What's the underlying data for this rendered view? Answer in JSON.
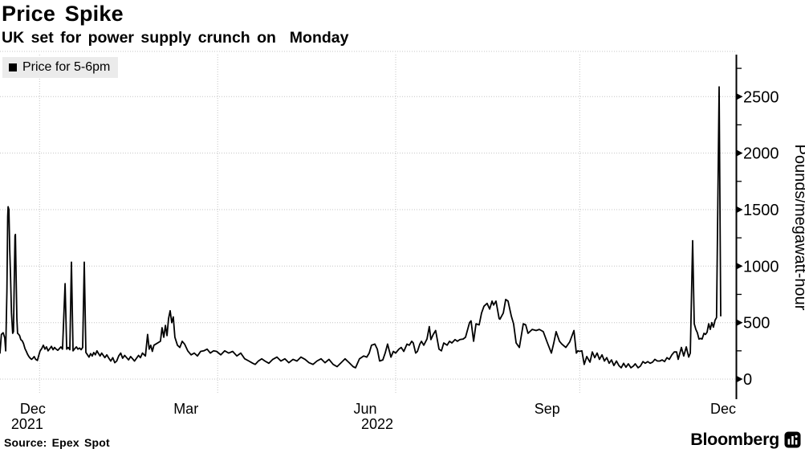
{
  "header": {
    "title": "Price Spike",
    "subtitle": "UK set for power supply crunch on  Monday"
  },
  "legend": {
    "label": "Price for 5-6pm",
    "swatch_color": "#000000",
    "background": "#ebebeb"
  },
  "footer": {
    "source": "Source: Epex Spot",
    "brand": "Bloomberg"
  },
  "colors": {
    "line": "#000000",
    "grid": "#c4c4c4",
    "axis": "#000000",
    "text": "#000000",
    "legend_bg": "#ebebeb"
  },
  "chart_data": {
    "type": "line",
    "title": "Price Spike",
    "subtitle": "UK set for power supply crunch on  Monday",
    "series_name": "Price for 5-6pm",
    "ylabel": "Pounds/megawatt-hour",
    "ylim": [
      0,
      2900
    ],
    "y_ticks": [
      0,
      500,
      1000,
      1500,
      2000,
      2500
    ],
    "y_minor_ticks": [
      250,
      750,
      1250,
      1750,
      2250,
      2750
    ],
    "grid": true,
    "legend_position": "top-left",
    "x_start_date": "2021-12-12",
    "x_span_days": 372,
    "x_gridline_dates": [
      "2022-01-01",
      "2022-04-01",
      "2022-07-01",
      "2022-10-01"
    ],
    "x_gridline_days": [
      20,
      110,
      200,
      293
    ],
    "x_ticks": [
      {
        "label": "Dec",
        "sublabel": "2021",
        "day": 16.6,
        "sublabel_dx": -7
      },
      {
        "label": "Mar",
        "day": 94
      },
      {
        "label": "Jun",
        "sublabel": "2022",
        "day": 184.6,
        "sublabel_dx": 15
      },
      {
        "label": "Sep",
        "day": 276.6
      },
      {
        "label": "Dec",
        "day": 365.5
      }
    ],
    "peak_value": 2586,
    "points": [
      [
        0,
        230
      ],
      [
        0.7,
        395
      ],
      [
        1.6,
        410
      ],
      [
        2.4,
        365
      ],
      [
        2.9,
        250
      ],
      [
        3.5,
        775
      ],
      [
        3.9,
        1440
      ],
      [
        4.1,
        1525
      ],
      [
        4.5,
        1500
      ],
      [
        4.9,
        1150
      ],
      [
        5.3,
        920
      ],
      [
        5.8,
        585
      ],
      [
        6.4,
        405
      ],
      [
        6.8,
        420
      ],
      [
        7.2,
        840
      ],
      [
        7.6,
        1270
      ],
      [
        7.8,
        1280
      ],
      [
        8.1,
        945
      ],
      [
        8.5,
        540
      ],
      [
        8.9,
        405
      ],
      [
        9.5,
        395
      ],
      [
        9.9,
        385
      ],
      [
        10.5,
        350
      ],
      [
        11.2,
        340
      ],
      [
        11.9,
        315
      ],
      [
        12.6,
        270
      ],
      [
        13.3,
        245
      ],
      [
        13.9,
        220
      ],
      [
        14.6,
        200
      ],
      [
        15.3,
        185
      ],
      [
        16,
        175
      ],
      [
        16.6,
        185
      ],
      [
        17.3,
        200
      ],
      [
        18,
        175
      ],
      [
        18.9,
        165
      ],
      [
        19.6,
        210
      ],
      [
        20.3,
        250
      ],
      [
        21.1,
        270
      ],
      [
        21.9,
        300
      ],
      [
        22.7,
        265
      ],
      [
        23.5,
        285
      ],
      [
        24.3,
        250
      ],
      [
        25.2,
        270
      ],
      [
        26,
        290
      ],
      [
        26.8,
        260
      ],
      [
        27.6,
        280
      ],
      [
        28.4,
        265
      ],
      [
        29.2,
        255
      ],
      [
        30,
        270
      ],
      [
        30.8,
        285
      ],
      [
        31.6,
        265
      ],
      [
        32.9,
        845
      ],
      [
        33.7,
        265
      ],
      [
        34.5,
        280
      ],
      [
        35.3,
        260
      ],
      [
        36.1,
        1035
      ],
      [
        36.9,
        250
      ],
      [
        37.8,
        270
      ],
      [
        38.6,
        285
      ],
      [
        39.4,
        265
      ],
      [
        40.2,
        275
      ],
      [
        41,
        260
      ],
      [
        41.8,
        280
      ],
      [
        42.6,
        1035
      ],
      [
        43.4,
        237
      ],
      [
        44.2,
        215
      ],
      [
        45,
        195
      ],
      [
        45.8,
        225
      ],
      [
        46.6,
        205
      ],
      [
        47.4,
        235
      ],
      [
        48.2,
        215
      ],
      [
        49,
        250
      ],
      [
        49.8,
        225
      ],
      [
        50.6,
        205
      ],
      [
        51.4,
        230
      ],
      [
        52.2,
        210
      ],
      [
        53,
        190
      ],
      [
        54,
        215
      ],
      [
        55,
        185
      ],
      [
        56,
        160
      ],
      [
        57,
        190
      ],
      [
        58,
        145
      ],
      [
        59,
        160
      ],
      [
        60,
        205
      ],
      [
        61,
        230
      ],
      [
        62,
        185
      ],
      [
        63,
        210
      ],
      [
        64,
        190
      ],
      [
        65,
        170
      ],
      [
        66,
        200
      ],
      [
        67,
        180
      ],
      [
        68,
        160
      ],
      [
        69,
        185
      ],
      [
        70,
        210
      ],
      [
        71,
        190
      ],
      [
        72,
        230
      ],
      [
        73.5,
        205
      ],
      [
        74.6,
        395
      ],
      [
        75.4,
        265
      ],
      [
        76.2,
        300
      ],
      [
        77,
        245
      ],
      [
        77.8,
        300
      ],
      [
        81.1,
        335
      ],
      [
        81.9,
        455
      ],
      [
        82.8,
        370
      ],
      [
        83.6,
        475
      ],
      [
        84.4,
        385
      ],
      [
        85.2,
        535
      ],
      [
        86,
        605
      ],
      [
        86.8,
        500
      ],
      [
        87.6,
        550
      ],
      [
        88.4,
        370
      ],
      [
        89.7,
        300
      ],
      [
        90.9,
        280
      ],
      [
        92.1,
        335
      ],
      [
        93.3,
        310
      ],
      [
        94.9,
        250
      ],
      [
        96.6,
        215
      ],
      [
        98.2,
        230
      ],
      [
        99.8,
        205
      ],
      [
        101.4,
        245
      ],
      [
        103,
        250
      ],
      [
        104.7,
        265
      ],
      [
        106.3,
        230
      ],
      [
        107.9,
        250
      ],
      [
        109.5,
        245
      ],
      [
        111.6,
        215
      ],
      [
        113.6,
        250
      ],
      [
        115.6,
        230
      ],
      [
        117.6,
        245
      ],
      [
        119.7,
        205
      ],
      [
        121.7,
        230
      ],
      [
        123.7,
        180
      ],
      [
        125.8,
        160
      ],
      [
        127.8,
        140
      ],
      [
        129,
        130
      ],
      [
        130.6,
        160
      ],
      [
        132.3,
        180
      ],
      [
        133.9,
        160
      ],
      [
        135.9,
        140
      ],
      [
        137.9,
        175
      ],
      [
        140,
        195
      ],
      [
        142,
        160
      ],
      [
        144,
        180
      ],
      [
        146,
        145
      ],
      [
        148.1,
        175
      ],
      [
        150.1,
        160
      ],
      [
        152.1,
        195
      ],
      [
        154.2,
        175
      ],
      [
        156.2,
        145
      ],
      [
        158.2,
        130
      ],
      [
        160.2,
        160
      ],
      [
        162.3,
        180
      ],
      [
        164.3,
        145
      ],
      [
        166.3,
        175
      ],
      [
        168.4,
        130
      ],
      [
        170.4,
        110
      ],
      [
        172.4,
        145
      ],
      [
        174.4,
        180
      ],
      [
        176.5,
        145
      ],
      [
        178.5,
        110
      ],
      [
        179.7,
        100
      ],
      [
        181.7,
        180
      ],
      [
        183.8,
        205
      ],
      [
        185.4,
        195
      ],
      [
        186.6,
        230
      ],
      [
        187.8,
        300
      ],
      [
        189.5,
        310
      ],
      [
        190.7,
        265
      ],
      [
        191.9,
        160
      ],
      [
        193.5,
        170
      ],
      [
        194.7,
        230
      ],
      [
        195.9,
        310
      ],
      [
        197.6,
        195
      ],
      [
        198.8,
        245
      ],
      [
        200,
        230
      ],
      [
        201.6,
        265
      ],
      [
        202.8,
        280
      ],
      [
        204.1,
        245
      ],
      [
        205.7,
        310
      ],
      [
        206.9,
        300
      ],
      [
        208.1,
        335
      ],
      [
        208.9,
        320
      ],
      [
        210.1,
        230
      ],
      [
        211,
        245
      ],
      [
        212.2,
        310
      ],
      [
        213,
        335
      ],
      [
        214.2,
        300
      ],
      [
        215.8,
        355
      ],
      [
        217,
        465
      ],
      [
        217.8,
        350
      ],
      [
        219,
        395
      ],
      [
        220.2,
        430
      ],
      [
        221.9,
        265
      ],
      [
        223.1,
        250
      ],
      [
        224.3,
        320
      ],
      [
        226,
        300
      ],
      [
        227.2,
        335
      ],
      [
        228.4,
        320
      ],
      [
        230,
        350
      ],
      [
        231.2,
        335
      ],
      [
        232.5,
        350
      ],
      [
        234.1,
        355
      ],
      [
        235.3,
        370
      ],
      [
        237.3,
        500
      ],
      [
        238.1,
        515
      ],
      [
        239.4,
        335
      ],
      [
        240.6,
        490
      ],
      [
        242.2,
        480
      ],
      [
        243.4,
        585
      ],
      [
        244.6,
        645
      ],
      [
        246.2,
        670
      ],
      [
        247.5,
        620
      ],
      [
        248.7,
        690
      ],
      [
        249.5,
        655
      ],
      [
        250.7,
        690
      ],
      [
        252.3,
        535
      ],
      [
        252.7,
        530
      ],
      [
        254.4,
        585
      ],
      [
        255.6,
        705
      ],
      [
        256.8,
        690
      ],
      [
        258.4,
        560
      ],
      [
        259.6,
        490
      ],
      [
        260.9,
        320
      ],
      [
        262.5,
        280
      ],
      [
        264.5,
        490
      ],
      [
        265.7,
        480
      ],
      [
        266.9,
        405
      ],
      [
        269,
        440
      ],
      [
        271,
        430
      ],
      [
        272.6,
        440
      ],
      [
        274.6,
        420
      ],
      [
        276.7,
        320
      ],
      [
        278.7,
        230
      ],
      [
        279.9,
        320
      ],
      [
        281.1,
        420
      ],
      [
        282.8,
        335
      ],
      [
        284,
        310
      ],
      [
        286,
        280
      ],
      [
        288,
        330
      ],
      [
        290.1,
        430
      ],
      [
        291.3,
        230
      ],
      [
        292.1,
        250
      ],
      [
        292.9,
        245
      ],
      [
        294.1,
        250
      ],
      [
        295.3,
        130
      ],
      [
        296.6,
        200
      ],
      [
        298.2,
        150
      ],
      [
        299.4,
        240
      ],
      [
        300.6,
        190
      ],
      [
        301.8,
        230
      ],
      [
        303,
        175
      ],
      [
        304.3,
        215
      ],
      [
        305.5,
        160
      ],
      [
        306.7,
        190
      ],
      [
        307.9,
        140
      ],
      [
        309.1,
        170
      ],
      [
        310.3,
        120
      ],
      [
        311.6,
        160
      ],
      [
        312.8,
        120
      ],
      [
        314,
        100
      ],
      [
        315.2,
        140
      ],
      [
        316.4,
        105
      ],
      [
        317.6,
        135
      ],
      [
        318.9,
        100
      ],
      [
        320.1,
        115
      ],
      [
        321.1,
        135
      ],
      [
        322.5,
        100
      ],
      [
        323.7,
        115
      ],
      [
        325,
        155
      ],
      [
        326.1,
        140
      ],
      [
        327.4,
        155
      ],
      [
        328.6,
        140
      ],
      [
        329.8,
        150
      ],
      [
        331,
        175
      ],
      [
        332.3,
        160
      ],
      [
        333.5,
        160
      ],
      [
        334.7,
        170
      ],
      [
        335.9,
        155
      ],
      [
        337.1,
        190
      ],
      [
        338.3,
        175
      ],
      [
        339.6,
        215
      ],
      [
        340.8,
        240
      ],
      [
        342,
        240
      ],
      [
        342.8,
        175
      ],
      [
        344.4,
        280
      ],
      [
        345.6,
        205
      ],
      [
        346.9,
        285
      ],
      [
        348.1,
        195
      ],
      [
        348.9,
        230
      ],
      [
        350.1,
        1225
      ],
      [
        350.9,
        490
      ],
      [
        351.7,
        440
      ],
      [
        352.5,
        410
      ],
      [
        353.3,
        355
      ],
      [
        354.1,
        360
      ],
      [
        354.9,
        355
      ],
      [
        355.8,
        405
      ],
      [
        356.6,
        395
      ],
      [
        357.4,
        415
      ],
      [
        358.2,
        490
      ],
      [
        359,
        440
      ],
      [
        359.8,
        500
      ],
      [
        360.6,
        460
      ],
      [
        361.4,
        520
      ],
      [
        362.2,
        545
      ],
      [
        363.5,
        2586
      ],
      [
        364.3,
        560
      ]
    ]
  }
}
